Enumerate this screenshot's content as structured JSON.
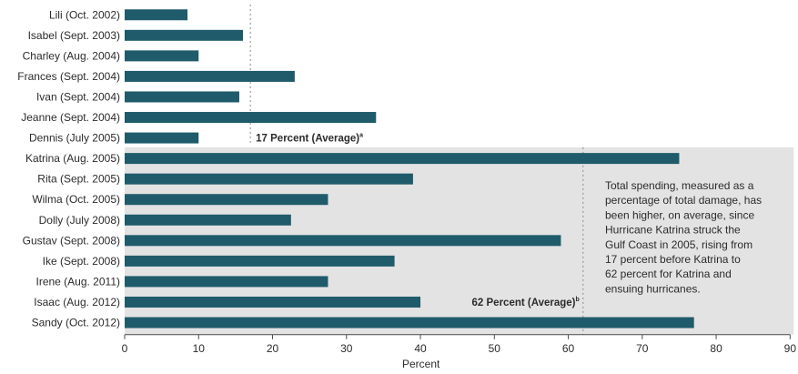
{
  "chart_data": {
    "type": "bar",
    "orientation": "horizontal",
    "categories": [
      "Lili (Oct. 2002)",
      "Isabel (Sept. 2003)",
      "Charley (Aug. 2004)",
      "Frances (Sept. 2004)",
      "Ivan (Sept. 2004)",
      "Jeanne (Sept. 2004)",
      "Dennis (July 2005)",
      "Katrina (Aug. 2005)",
      "Rita (Sept. 2005)",
      "Wilma (Oct. 2005)",
      "Dolly (July 2008)",
      "Gustav (Sept. 2008)",
      "Ike (Sept. 2008)",
      "Irene (Aug. 2011)",
      "Isaac (Aug. 2012)",
      "Sandy (Oct. 2012)"
    ],
    "values": [
      8.5,
      16,
      10,
      23,
      15.5,
      34,
      10,
      75,
      39,
      27.5,
      22.5,
      59,
      36.5,
      27.5,
      40,
      77
    ],
    "xlabel": "Percent",
    "xlim": [
      0,
      90
    ],
    "xticks": [
      "0",
      "10",
      "20",
      "30",
      "40",
      "50",
      "60",
      "70",
      "80",
      "90"
    ],
    "bar_color": "#1f5b6b",
    "shade_color": "#e3e3e3",
    "shaded_from_category": "Katrina (Aug. 2005)",
    "reference_lines": [
      {
        "value": 17,
        "label": "17 Percent (Average)",
        "note_marker": "a"
      },
      {
        "value": 62,
        "label": "62 Percent (Average)",
        "note_marker": "b"
      }
    ],
    "annotation": [
      "Total spending, measured as a",
      "percentage of total damage, has",
      "been higher, on average, since",
      "Hurricane Katrina struck the",
      "Gulf Coast in 2005, rising from",
      "17 percent before Katrina to",
      "62 percent for Katrina and",
      "ensuing hurricanes."
    ]
  }
}
